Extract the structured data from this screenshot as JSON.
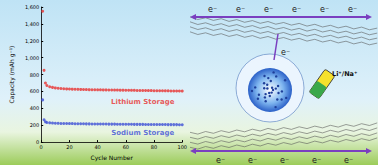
{
  "chart_data": {
    "type": "scatter",
    "x_label": "Cycle Number",
    "y_label": "Capacity (mAh g⁻¹)",
    "x": [
      1,
      2,
      3,
      4,
      6,
      8,
      10,
      12,
      14,
      16,
      18,
      20,
      22,
      24,
      26,
      28,
      30,
      32,
      34,
      36,
      38,
      40,
      42,
      44,
      46,
      48,
      50,
      52,
      54,
      56,
      58,
      60,
      62,
      64,
      66,
      68,
      70,
      72,
      74,
      76,
      78,
      80,
      82,
      84,
      86,
      88,
      90,
      92,
      94,
      96,
      98,
      100
    ],
    "series": [
      {
        "color": "#e8312f",
        "marker": "circle",
        "values": [
          1550,
          850,
          700,
          670,
          655,
          648,
          642,
          638,
          635,
          632,
          630,
          628,
          627,
          626,
          625,
          624,
          623,
          622,
          621,
          620,
          620,
          619,
          619,
          618,
          618,
          617,
          617,
          616,
          616,
          615,
          615,
          614,
          614,
          613,
          613,
          612,
          612,
          611,
          611,
          610,
          610,
          609,
          609,
          608,
          608,
          607,
          607,
          606,
          606,
          605,
          605,
          604
        ]
      },
      {
        "color": "#3d4fd6",
        "marker": "circle",
        "values": [
          500,
          265,
          240,
          232,
          228,
          225,
          223,
          222,
          221,
          220,
          220,
          219,
          219,
          218,
          218,
          217,
          217,
          216,
          216,
          215,
          215,
          215,
          214,
          214,
          214,
          213,
          213,
          213,
          212,
          212,
          212,
          211,
          211,
          211,
          210,
          210,
          210,
          210,
          209,
          209,
          209,
          209,
          208,
          208,
          208,
          208,
          207,
          207,
          207,
          207,
          206,
          206
        ]
      }
    ],
    "annotations": [
      {
        "text": "Lithium Storage",
        "x": 72,
        "y": 470,
        "color": "#e8312f"
      },
      {
        "text": "Sodium Storage",
        "x": 72,
        "y": 110,
        "color": "#3d4fd6"
      }
    ],
    "xlim": [
      0,
      100
    ],
    "xticks": [
      0,
      20,
      40,
      60,
      80,
      100
    ],
    "ylim": [
      0,
      1600
    ],
    "yticks": [
      0,
      200,
      400,
      600,
      800,
      1000,
      1200,
      1400,
      1600
    ],
    "grid": false
  },
  "diagram": {
    "top_labels": [
      "e⁻",
      "e⁻",
      "e⁻",
      "e⁻",
      "e⁻",
      "e⁻"
    ],
    "bottom_labels": [
      "e⁻",
      "e⁻",
      "e⁻",
      "e⁻",
      "e⁻"
    ],
    "center_label": "e⁻",
    "battery_label": "Li⁺/Na⁺"
  }
}
